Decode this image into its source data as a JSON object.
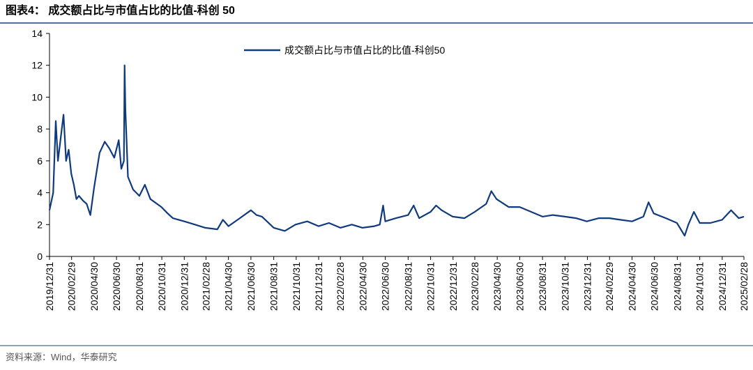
{
  "chart_data": {
    "type": "line",
    "title": "图表4：  成交额占比与市值占比的比值-科创 50",
    "source": "资料来源：Wind，华泰研究",
    "legend": "top center",
    "x": [
      "2019/12/31",
      "2020/01/10",
      "2020/01/17",
      "2020/01/23",
      "2020/02/07",
      "2020/02/14",
      "2020/02/21",
      "2020/02/28",
      "2020/03/06",
      "2020/03/13",
      "2020/03/20",
      "2020/03/31",
      "2020/04/10",
      "2020/04/20",
      "2020/04/30",
      "2020/05/15",
      "2020/05/29",
      "2020/06/10",
      "2020/06/24",
      "2020/07/06",
      "2020/07/13",
      "2020/07/20",
      "2020/07/22",
      "2020/07/24",
      "2020/07/31",
      "2020/08/14",
      "2020/08/31",
      "2020/09/15",
      "2020/09/30",
      "2020/10/30",
      "2020/11/16",
      "2020/11/30",
      "2020/12/31",
      "2021/01/29",
      "2021/02/26",
      "2021/03/31",
      "2021/04/15",
      "2021/04/30",
      "2021/05/31",
      "2021/06/30",
      "2021/07/15",
      "2021/07/30",
      "2021/08/31",
      "2021/09/30",
      "2021/10/29",
      "2021/11/30",
      "2021/12/31",
      "2022/01/28",
      "2022/02/28",
      "2022/03/31",
      "2022/04/29",
      "2022/05/31",
      "2022/06/15",
      "2022/06/24",
      "2022/06/30",
      "2022/07/29",
      "2022/08/31",
      "2022/09/15",
      "2022/09/30",
      "2022/10/31",
      "2022/11/15",
      "2022/11/30",
      "2022/12/30",
      "2023/01/31",
      "2023/02/28",
      "2023/03/31",
      "2023/04/14",
      "2023/04/28",
      "2023/05/31",
      "2023/06/30",
      "2023/07/31",
      "2023/08/31",
      "2023/09/28",
      "2023/10/31",
      "2023/11/30",
      "2023/12/29",
      "2024/01/31",
      "2024/02/29",
      "2024/03/29",
      "2024/04/30",
      "2024/05/31",
      "2024/06/14",
      "2024/06/28",
      "2024/07/31",
      "2024/08/30",
      "2024/09/20",
      "2024/09/30",
      "2024/10/15",
      "2024/10/31",
      "2024/11/29",
      "2024/12/31",
      "2025/01/24",
      "2025/02/14",
      "2025/02/28"
    ],
    "series": [
      {
        "name": "成交额占比与市值占比的比值-科创50",
        "color": "#0f3a7d",
        "values": [
          2.9,
          4.0,
          8.5,
          6.0,
          8.9,
          6.0,
          6.7,
          5.2,
          4.5,
          3.6,
          3.8,
          3.5,
          3.3,
          2.6,
          4.3,
          6.5,
          7.2,
          6.8,
          6.2,
          7.3,
          5.5,
          6.0,
          12.0,
          9.3,
          5.0,
          4.2,
          3.8,
          4.5,
          3.6,
          3.1,
          2.7,
          2.4,
          2.2,
          2.0,
          1.8,
          1.7,
          2.3,
          1.9,
          2.4,
          2.9,
          2.6,
          2.5,
          1.8,
          1.6,
          2.0,
          2.2,
          1.9,
          2.1,
          1.8,
          2.0,
          1.8,
          1.9,
          2.0,
          3.2,
          2.2,
          2.4,
          2.6,
          3.2,
          2.4,
          2.8,
          3.2,
          2.9,
          2.5,
          2.4,
          2.8,
          3.3,
          4.1,
          3.6,
          3.1,
          3.1,
          2.8,
          2.5,
          2.6,
          2.5,
          2.4,
          2.2,
          2.4,
          2.4,
          2.3,
          2.2,
          2.5,
          3.4,
          2.7,
          2.4,
          2.1,
          1.3,
          2.0,
          2.8,
          2.1,
          2.1,
          2.3,
          2.9,
          2.4,
          2.5
        ]
      }
    ],
    "xlim": [
      "2019/12/31",
      "2025/02/28"
    ],
    "xticks": [
      "2019/12/31",
      "2020/02/29",
      "2020/04/30",
      "2020/06/30",
      "2020/08/31",
      "2020/10/31",
      "2020/12/31",
      "2021/02/28",
      "2021/04/30",
      "2021/06/30",
      "2021/08/31",
      "2021/10/31",
      "2021/12/31",
      "2022/02/28",
      "2022/04/30",
      "2022/06/30",
      "2022/08/31",
      "2022/10/31",
      "2022/12/31",
      "2023/02/28",
      "2023/04/30",
      "2023/06/30",
      "2023/08/31",
      "2023/10/31",
      "2023/12/31",
      "2024/02/29",
      "2024/04/30",
      "2024/06/30",
      "2024/08/31",
      "2024/10/31",
      "2024/12/31",
      "2025/02/28"
    ],
    "ylim": [
      0,
      14
    ],
    "yticks": [
      0,
      2,
      4,
      6,
      8,
      10,
      12,
      14
    ],
    "grid": false
  }
}
